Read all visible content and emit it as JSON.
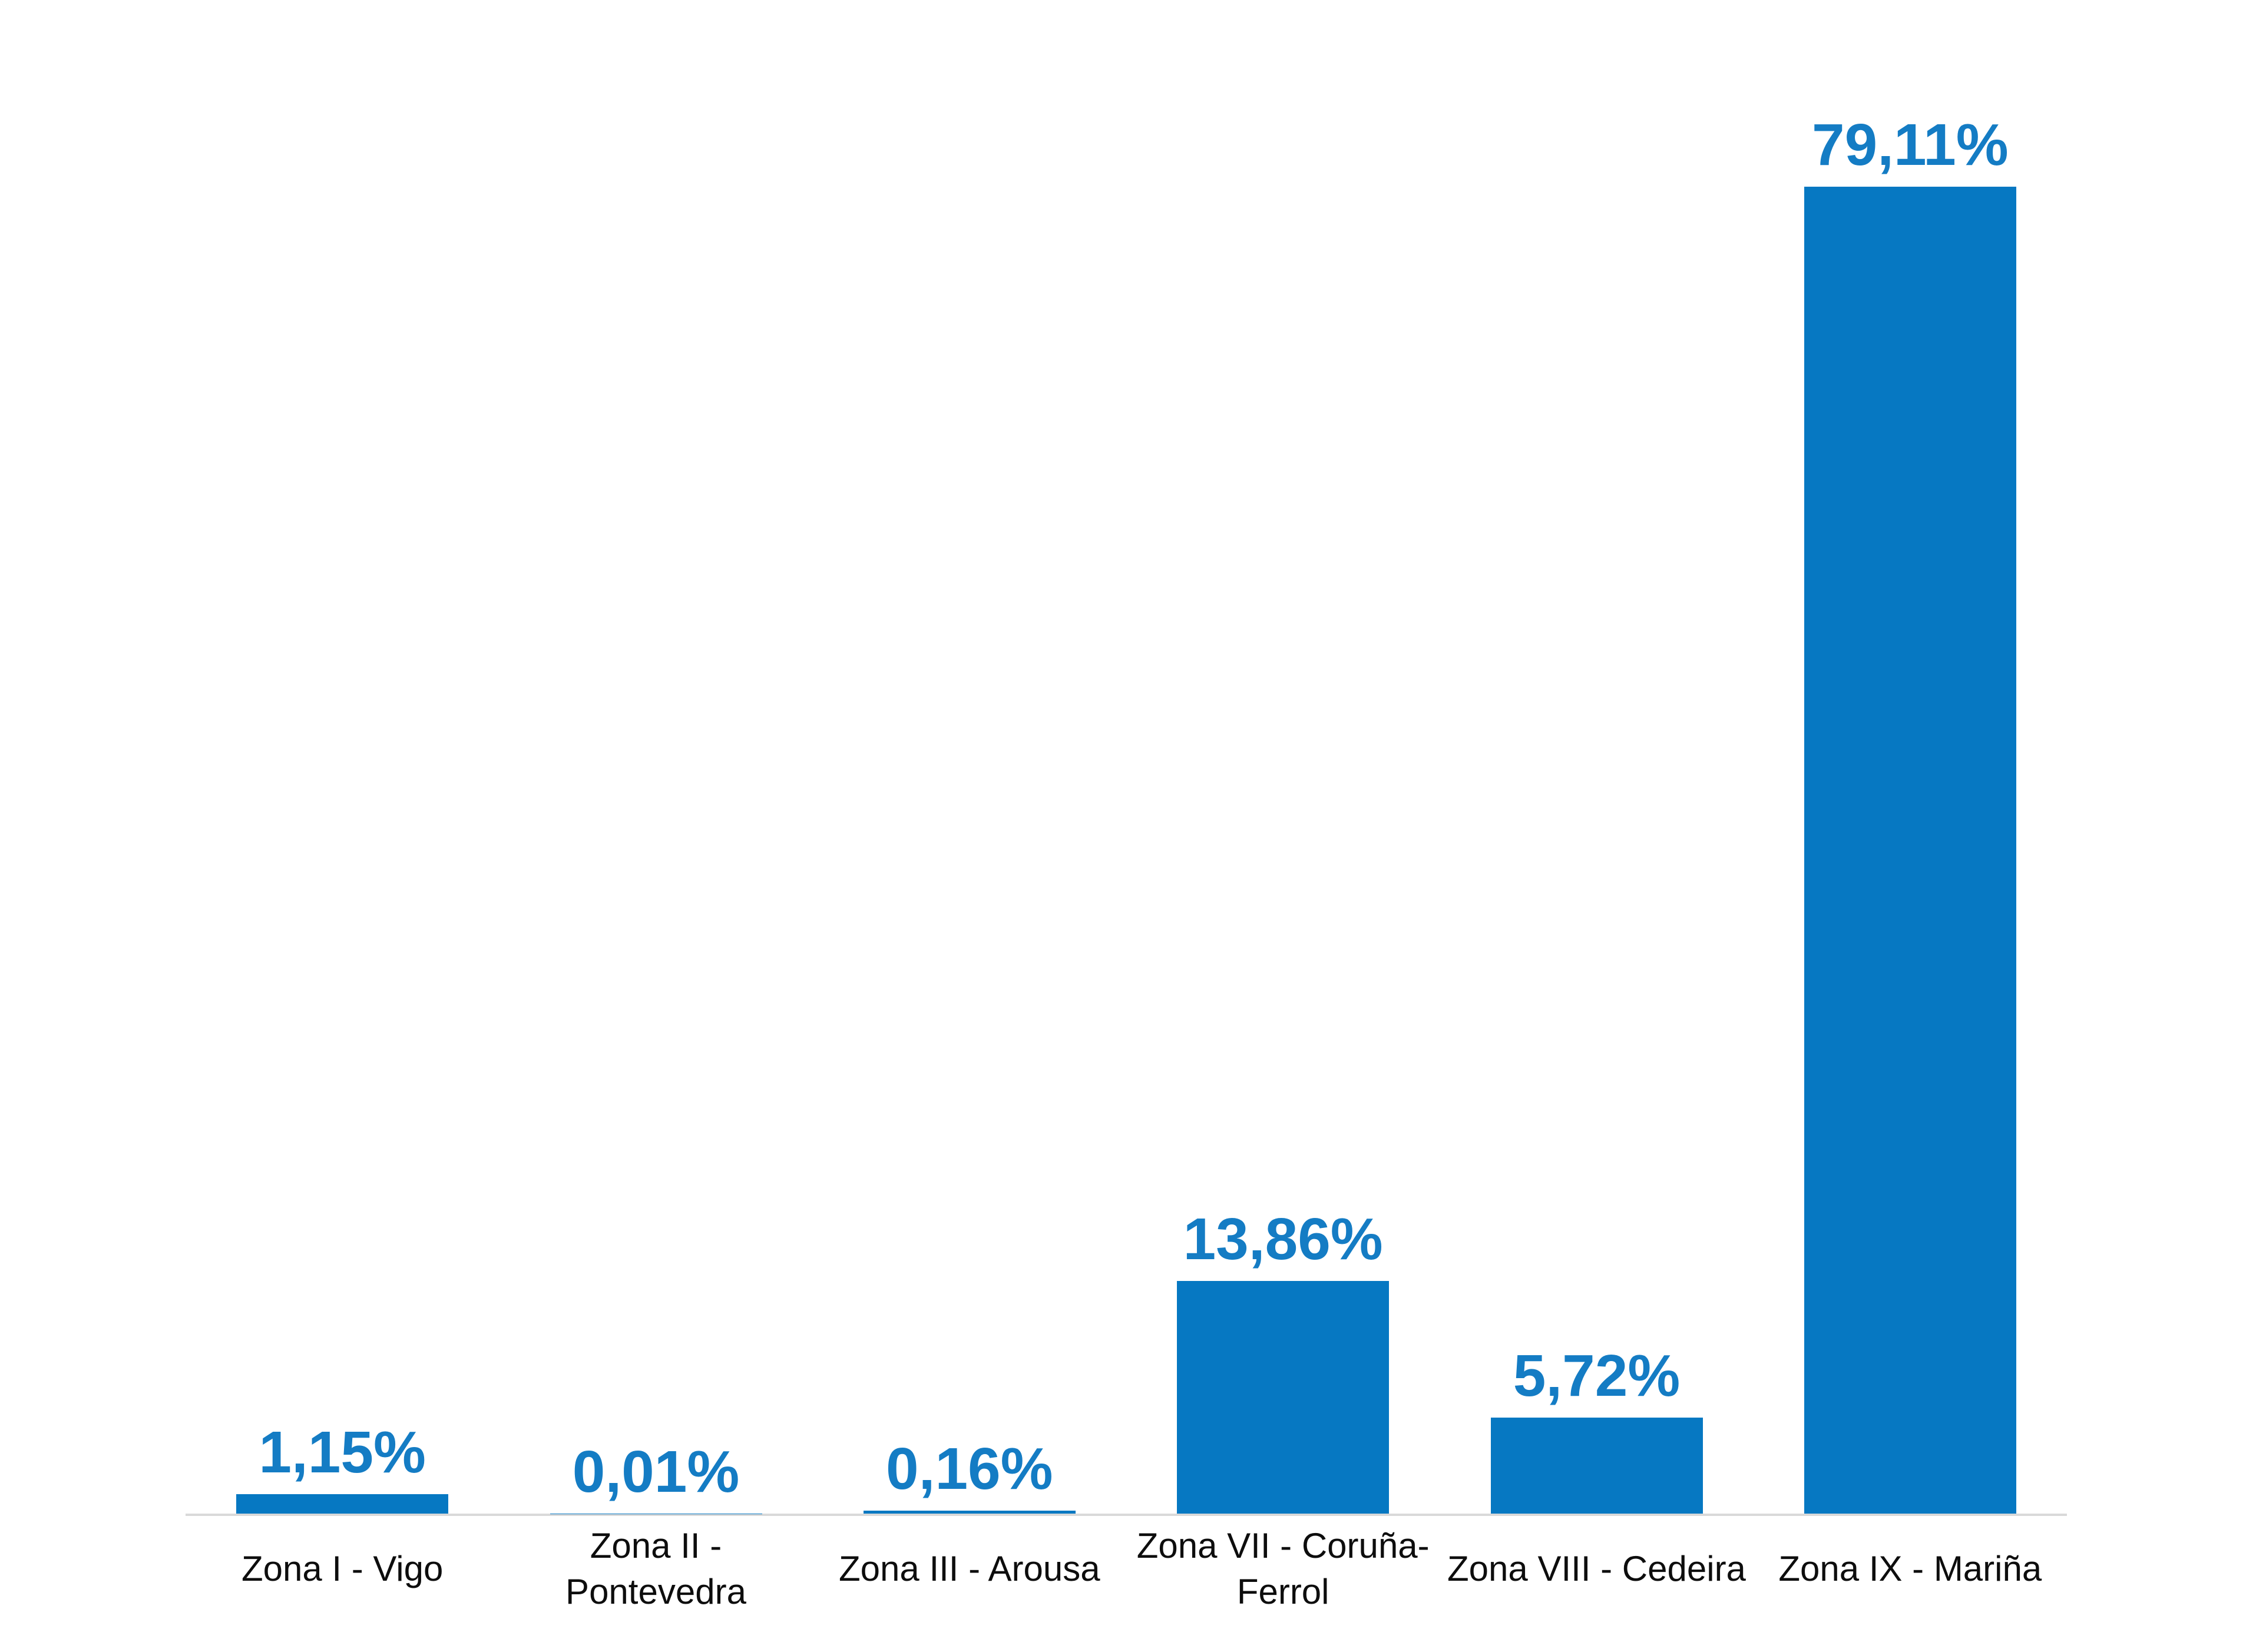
{
  "chart_data": {
    "type": "bar",
    "title": "",
    "xlabel": "",
    "ylabel": "",
    "categories": [
      "Zona I - Vigo",
      "Zona II - Pontevedra",
      "Zona III - Arousa",
      "Zona VII - Coruña-Ferrol",
      "Zona VIII - Cedeira",
      "Zona IX - Mariña"
    ],
    "category_lines": [
      [
        "Zona I - Vigo"
      ],
      [
        "Zona II -",
        "Pontevedra"
      ],
      [
        "Zona III - Arousa"
      ],
      [
        "Zona VII - Coruña-",
        "Ferrol"
      ],
      [
        "Zona VIII - Cedeira"
      ],
      [
        "Zona IX - Mariña"
      ]
    ],
    "values": [
      1.15,
      0.01,
      0.16,
      13.86,
      5.72,
      79.11
    ],
    "value_labels": [
      "1,15%",
      "0,01%",
      "0,16%",
      "13,86%",
      "5,72%",
      "79,11%"
    ],
    "decimal_separator": ",",
    "unit": "%",
    "ylim": [
      0,
      79.11
    ],
    "grid": false,
    "legend": false,
    "colors": {
      "bar": "#0678c2",
      "value_label": "#147cc4",
      "category_label": "#0d0d0d",
      "axis_line": "#d9d9d9",
      "background": "#ffffff"
    }
  }
}
